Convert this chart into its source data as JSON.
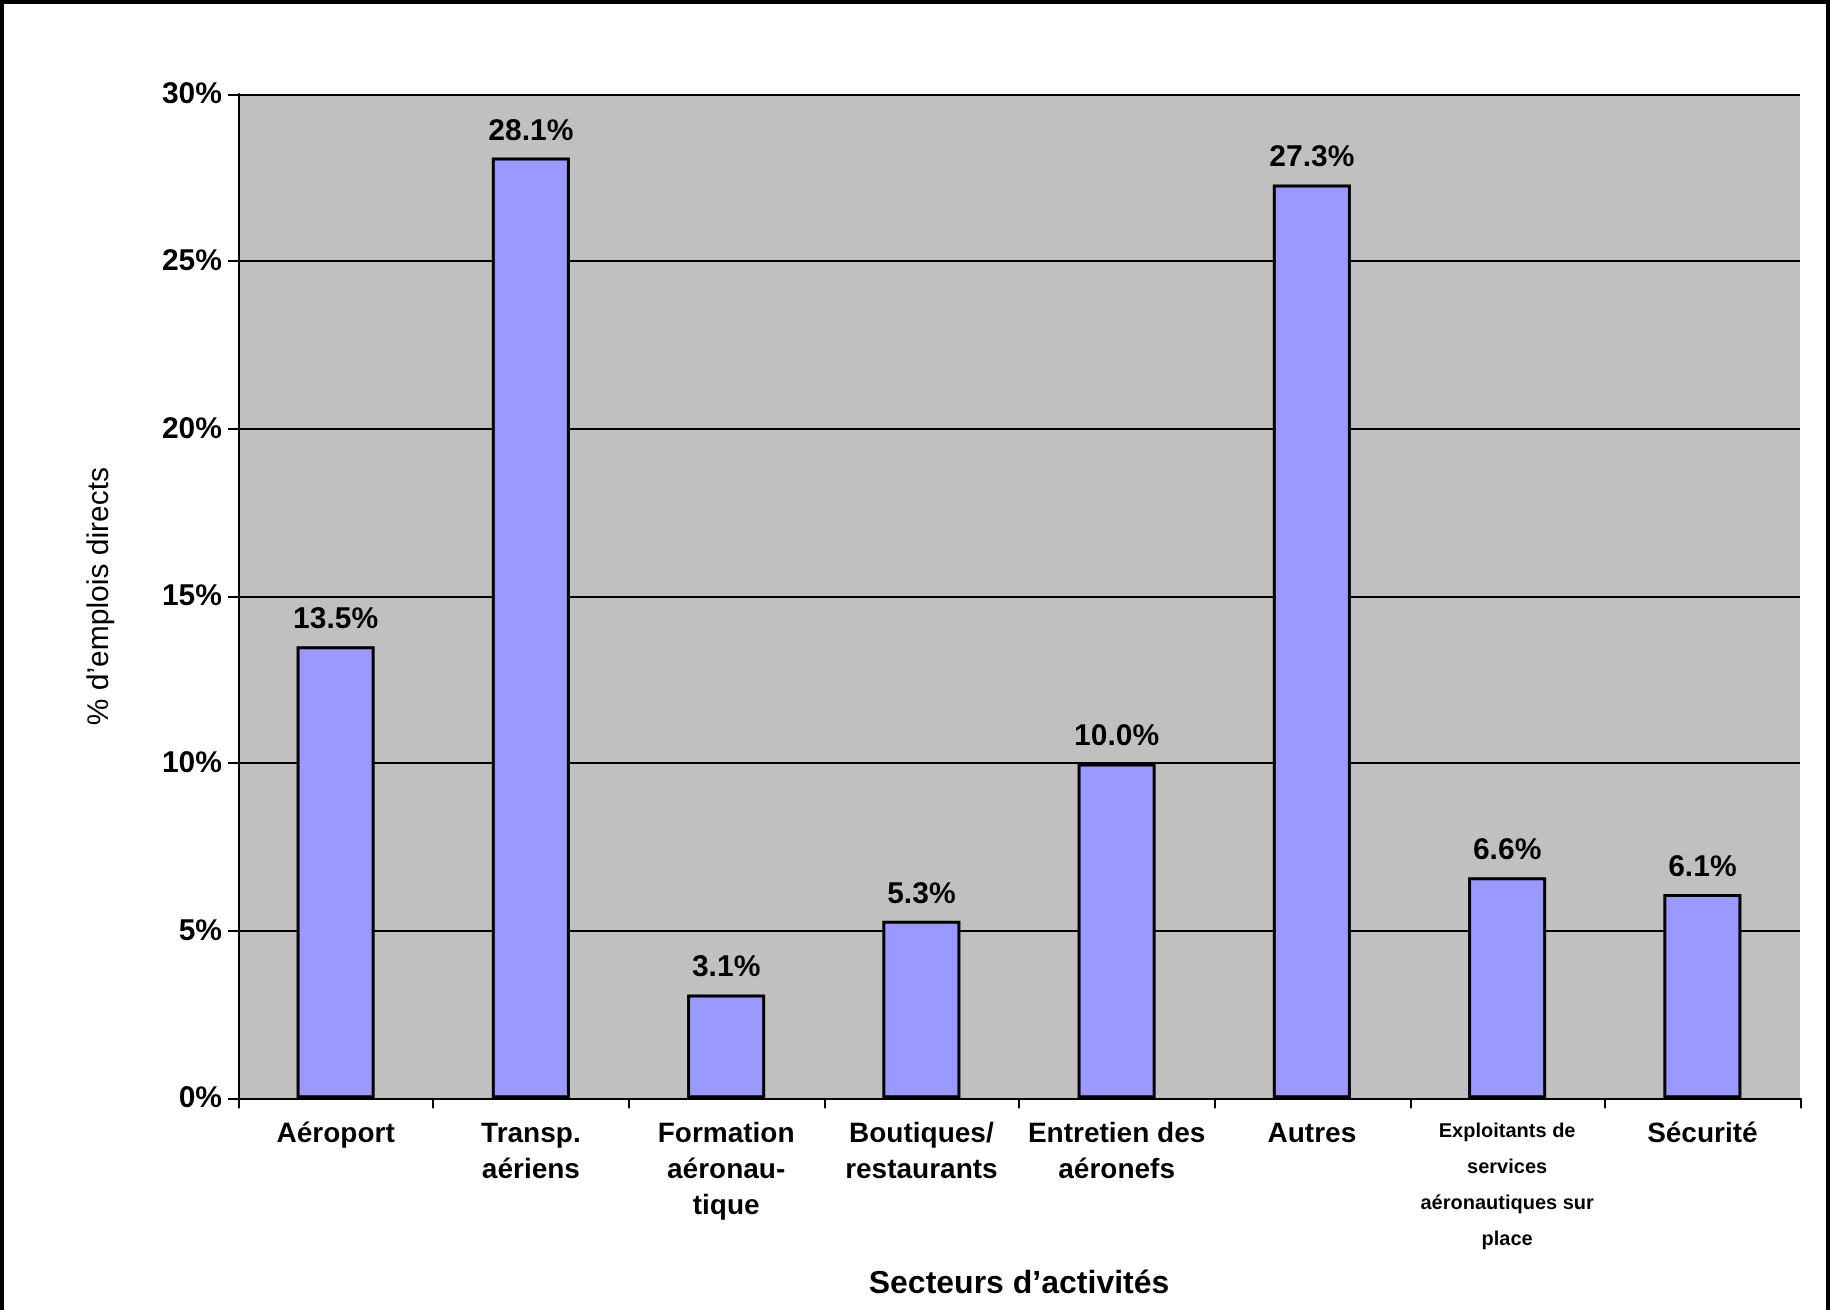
{
  "chart_data": {
    "type": "bar",
    "xlabel": "Secteurs d’activités",
    "ylabel": "% d’emplois directs",
    "categories": [
      "Aéroport",
      "Transp.\naériens",
      "Formation\naéronau-\ntique",
      "Boutiques/\nrestaurants",
      "Entretien des\naéronefs",
      "Autres",
      "Exploitants de\nservices\naéronautiques sur\nplace",
      "Sécurité"
    ],
    "values": [
      13.5,
      28.1,
      3.1,
      5.3,
      10.0,
      27.3,
      6.6,
      6.1
    ],
    "value_labels": [
      "13.5%",
      "28.1%",
      "3.1%",
      "5.3%",
      "10.0%",
      "27.3%",
      "6.6%",
      "6.1%"
    ],
    "color": "#9999ff",
    "ylim": [
      0,
      30
    ],
    "yticks": [
      {
        "value": 0,
        "label": "0%"
      },
      {
        "value": 5,
        "label": "5%"
      },
      {
        "value": 10,
        "label": "10%"
      },
      {
        "value": 15,
        "label": "15%"
      },
      {
        "value": 20,
        "label": "20%"
      },
      {
        "value": 25,
        "label": "25%"
      },
      {
        "value": 30,
        "label": "30%"
      }
    ],
    "grid": "y"
  }
}
